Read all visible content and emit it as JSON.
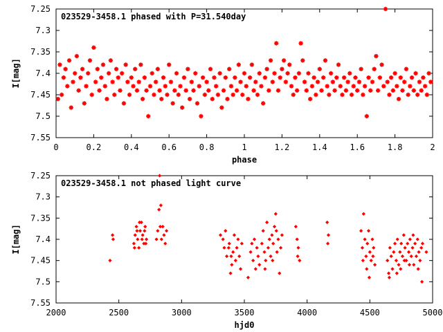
{
  "chart_data": [
    {
      "type": "scatter",
      "title": "023529-3458.1 phased with P=31.540day",
      "xlabel": "phase",
      "ylabel": "I[mag]",
      "xlim": [
        0,
        2
      ],
      "ylim": [
        7.25,
        7.55
      ],
      "y_inverted": true,
      "xticks": [
        "0",
        "0.2",
        "0.4",
        "0.6",
        "0.8",
        "1",
        "1.2",
        "1.4",
        "1.6",
        "1.8",
        "2"
      ],
      "yticks": [
        "7.25",
        "7.3",
        "7.35",
        "7.4",
        "7.45",
        "7.5",
        "7.55"
      ],
      "marker": "star",
      "color": "#ff0000",
      "points": [
        [
          0.01,
          7.46
        ],
        [
          0.02,
          7.38
        ],
        [
          0.03,
          7.45
        ],
        [
          0.04,
          7.41
        ],
        [
          0.05,
          7.39
        ],
        [
          0.06,
          7.43
        ],
        [
          0.07,
          7.37
        ],
        [
          0.08,
          7.48
        ],
        [
          0.09,
          7.42
        ],
        [
          0.1,
          7.4
        ],
        [
          0.11,
          7.36
        ],
        [
          0.12,
          7.44
        ],
        [
          0.13,
          7.41
        ],
        [
          0.14,
          7.39
        ],
        [
          0.15,
          7.47
        ],
        [
          0.16,
          7.43
        ],
        [
          0.17,
          7.4
        ],
        [
          0.18,
          7.37
        ],
        [
          0.19,
          7.45
        ],
        [
          0.2,
          7.34
        ],
        [
          0.21,
          7.42
        ],
        [
          0.22,
          7.39
        ],
        [
          0.23,
          7.44
        ],
        [
          0.24,
          7.41
        ],
        [
          0.25,
          7.38
        ],
        [
          0.26,
          7.43
        ],
        [
          0.27,
          7.46
        ],
        [
          0.28,
          7.4
        ],
        [
          0.29,
          7.37
        ],
        [
          0.3,
          7.42
        ],
        [
          0.31,
          7.45
        ],
        [
          0.32,
          7.39
        ],
        [
          0.33,
          7.41
        ],
        [
          0.34,
          7.44
        ],
        [
          0.35,
          7.4
        ],
        [
          0.36,
          7.47
        ],
        [
          0.37,
          7.38
        ],
        [
          0.38,
          7.42
        ],
        [
          0.39,
          7.45
        ],
        [
          0.4,
          7.41
        ],
        [
          0.41,
          7.43
        ],
        [
          0.42,
          7.39
        ],
        [
          0.43,
          7.44
        ],
        [
          0.44,
          7.42
        ],
        [
          0.45,
          7.38
        ],
        [
          0.46,
          7.46
        ],
        [
          0.47,
          7.41
        ],
        [
          0.48,
          7.44
        ],
        [
          0.49,
          7.5
        ],
        [
          0.5,
          7.43
        ],
        [
          0.51,
          7.4
        ],
        [
          0.52,
          7.45
        ],
        [
          0.53,
          7.42
        ],
        [
          0.54,
          7.39
        ],
        [
          0.55,
          7.44
        ],
        [
          0.56,
          7.46
        ],
        [
          0.57,
          7.41
        ],
        [
          0.58,
          7.43
        ],
        [
          0.59,
          7.45
        ],
        [
          0.6,
          7.38
        ],
        [
          0.61,
          7.42
        ],
        [
          0.62,
          7.47
        ],
        [
          0.63,
          7.44
        ],
        [
          0.64,
          7.4
        ],
        [
          0.65,
          7.45
        ],
        [
          0.66,
          7.43
        ],
        [
          0.67,
          7.48
        ],
        [
          0.68,
          7.41
        ],
        [
          0.69,
          7.44
        ],
        [
          0.7,
          7.39
        ],
        [
          0.71,
          7.46
        ],
        [
          0.72,
          7.42
        ],
        [
          0.73,
          7.44
        ],
        [
          0.74,
          7.4
        ],
        [
          0.75,
          7.47
        ],
        [
          0.76,
          7.43
        ],
        [
          0.77,
          7.5
        ],
        [
          0.78,
          7.41
        ],
        [
          0.79,
          7.45
        ],
        [
          0.8,
          7.42
        ],
        [
          0.81,
          7.44
        ],
        [
          0.82,
          7.39
        ],
        [
          0.83,
          7.46
        ],
        [
          0.84,
          7.41
        ],
        [
          0.85,
          7.43
        ],
        [
          0.86,
          7.45
        ],
        [
          0.87,
          7.4
        ],
        [
          0.88,
          7.48
        ],
        [
          0.89,
          7.44
        ],
        [
          0.9,
          7.41
        ],
        [
          0.91,
          7.46
        ],
        [
          0.92,
          7.39
        ],
        [
          0.93,
          7.43
        ],
        [
          0.94,
          7.45
        ],
        [
          0.95,
          7.41
        ],
        [
          0.96,
          7.44
        ],
        [
          0.97,
          7.38
        ],
        [
          0.98,
          7.42
        ],
        [
          0.99,
          7.45
        ],
        [
          1.0,
          7.4
        ],
        [
          1.01,
          7.43
        ],
        [
          1.02,
          7.46
        ],
        [
          1.03,
          7.41
        ],
        [
          1.04,
          7.38
        ],
        [
          1.05,
          7.44
        ],
        [
          1.06,
          7.42
        ],
        [
          1.07,
          7.45
        ],
        [
          1.08,
          7.4
        ],
        [
          1.09,
          7.43
        ],
        [
          1.1,
          7.47
        ],
        [
          1.11,
          7.41
        ],
        [
          1.12,
          7.39
        ],
        [
          1.13,
          7.44
        ],
        [
          1.14,
          7.37
        ],
        [
          1.15,
          7.42
        ],
        [
          1.16,
          7.4
        ],
        [
          1.17,
          7.33
        ],
        [
          1.18,
          7.44
        ],
        [
          1.19,
          7.41
        ],
        [
          1.2,
          7.39
        ],
        [
          1.21,
          7.37
        ],
        [
          1.22,
          7.42
        ],
        [
          1.23,
          7.4
        ],
        [
          1.24,
          7.38
        ],
        [
          1.25,
          7.43
        ],
        [
          1.26,
          7.45
        ],
        [
          1.27,
          7.41
        ],
        [
          1.28,
          7.44
        ],
        [
          1.29,
          7.4
        ],
        [
          1.3,
          7.33
        ],
        [
          1.31,
          7.37
        ],
        [
          1.32,
          7.42
        ],
        [
          1.33,
          7.44
        ],
        [
          1.34,
          7.4
        ],
        [
          1.35,
          7.46
        ],
        [
          1.36,
          7.43
        ],
        [
          1.37,
          7.41
        ],
        [
          1.38,
          7.45
        ],
        [
          1.39,
          7.42
        ],
        [
          1.4,
          7.39
        ],
        [
          1.41,
          7.44
        ],
        [
          1.42,
          7.41
        ],
        [
          1.43,
          7.37
        ],
        [
          1.44,
          7.43
        ],
        [
          1.45,
          7.45
        ],
        [
          1.46,
          7.4
        ],
        [
          1.47,
          7.42
        ],
        [
          1.48,
          7.44
        ],
        [
          1.49,
          7.41
        ],
        [
          1.5,
          7.38
        ],
        [
          1.51,
          7.43
        ],
        [
          1.52,
          7.45
        ],
        [
          1.53,
          7.41
        ],
        [
          1.54,
          7.44
        ],
        [
          1.55,
          7.42
        ],
        [
          1.56,
          7.4
        ],
        [
          1.57,
          7.45
        ],
        [
          1.58,
          7.43
        ],
        [
          1.59,
          7.41
        ],
        [
          1.6,
          7.44
        ],
        [
          1.61,
          7.42
        ],
        [
          1.62,
          7.39
        ],
        [
          1.63,
          7.45
        ],
        [
          1.64,
          7.43
        ],
        [
          1.65,
          7.5
        ],
        [
          1.66,
          7.41
        ],
        [
          1.67,
          7.44
        ],
        [
          1.68,
          7.42
        ],
        [
          1.69,
          7.39
        ],
        [
          1.7,
          7.36
        ],
        [
          1.71,
          7.44
        ],
        [
          1.72,
          7.41
        ],
        [
          1.73,
          7.38
        ],
        [
          1.74,
          7.43
        ],
        [
          1.75,
          7.25
        ],
        [
          1.76,
          7.42
        ],
        [
          1.77,
          7.45
        ],
        [
          1.78,
          7.41
        ],
        [
          1.79,
          7.44
        ],
        [
          1.8,
          7.4
        ],
        [
          1.81,
          7.43
        ],
        [
          1.82,
          7.46
        ],
        [
          1.83,
          7.41
        ],
        [
          1.84,
          7.44
        ],
        [
          1.85,
          7.42
        ],
        [
          1.86,
          7.39
        ],
        [
          1.87,
          7.45
        ],
        [
          1.88,
          7.43
        ],
        [
          1.89,
          7.41
        ],
        [
          1.9,
          7.44
        ],
        [
          1.91,
          7.4
        ],
        [
          1.92,
          7.45
        ],
        [
          1.93,
          7.42
        ],
        [
          1.94,
          7.44
        ],
        [
          1.95,
          7.41
        ],
        [
          1.96,
          7.43
        ],
        [
          1.97,
          7.45
        ],
        [
          1.98,
          7.4
        ],
        [
          1.99,
          7.42
        ]
      ]
    },
    {
      "type": "scatter",
      "title": "023529-3458.1 not phased light curve",
      "xlabel": "hjd0",
      "ylabel": "I[mag]",
      "xlim": [
        2000,
        5000
      ],
      "ylim": [
        7.25,
        7.55
      ],
      "y_inverted": true,
      "xticks": [
        "2000",
        "2500",
        "3000",
        "3500",
        "4000",
        "4500",
        "5000"
      ],
      "yticks": [
        "7.25",
        "7.3",
        "7.35",
        "7.4",
        "7.45",
        "7.5",
        "7.55"
      ],
      "marker": "diamond",
      "color": "#ff0000",
      "points": [
        [
          2430,
          7.45
        ],
        [
          2450,
          7.39
        ],
        [
          2455,
          7.4
        ],
        [
          2620,
          7.41
        ],
        [
          2630,
          7.39
        ],
        [
          2640,
          7.37
        ],
        [
          2650,
          7.4
        ],
        [
          2660,
          7.42
        ],
        [
          2670,
          7.38
        ],
        [
          2680,
          7.36
        ],
        [
          2690,
          7.39
        ],
        [
          2700,
          7.41
        ],
        [
          2710,
          7.37
        ],
        [
          2720,
          7.4
        ],
        [
          2625,
          7.42
        ],
        [
          2645,
          7.38
        ],
        [
          2665,
          7.36
        ],
        [
          2685,
          7.4
        ],
        [
          2705,
          7.38
        ],
        [
          2715,
          7.41
        ],
        [
          2800,
          7.4
        ],
        [
          2810,
          7.38
        ],
        [
          2820,
          7.33
        ],
        [
          2830,
          7.37
        ],
        [
          2840,
          7.4
        ],
        [
          2850,
          7.37
        ],
        [
          2860,
          7.39
        ],
        [
          2870,
          7.41
        ],
        [
          2880,
          7.38
        ],
        [
          2825,
          7.25
        ],
        [
          2835,
          7.32
        ],
        [
          3310,
          7.39
        ],
        [
          3330,
          7.4
        ],
        [
          3340,
          7.42
        ],
        [
          3350,
          7.38
        ],
        [
          3360,
          7.44
        ],
        [
          3380,
          7.41
        ],
        [
          3400,
          7.46
        ],
        [
          3410,
          7.43
        ],
        [
          3420,
          7.39
        ],
        [
          3430,
          7.45
        ],
        [
          3440,
          7.42
        ],
        [
          3450,
          7.4
        ],
        [
          3460,
          7.44
        ],
        [
          3470,
          7.47
        ],
        [
          3480,
          7.41
        ],
        [
          3390,
          7.48
        ],
        [
          3395,
          7.44
        ],
        [
          3375,
          7.42
        ],
        [
          3530,
          7.49
        ],
        [
          3550,
          7.43
        ],
        [
          3560,
          7.41
        ],
        [
          3570,
          7.45
        ],
        [
          3580,
          7.4
        ],
        [
          3590,
          7.47
        ],
        [
          3600,
          7.42
        ],
        [
          3610,
          7.44
        ],
        [
          3620,
          7.46
        ],
        [
          3640,
          7.41
        ],
        [
          3650,
          7.38
        ],
        [
          3660,
          7.43
        ],
        [
          3670,
          7.45
        ],
        [
          3680,
          7.36
        ],
        [
          3690,
          7.42
        ],
        [
          3700,
          7.4
        ],
        [
          3710,
          7.44
        ],
        [
          3720,
          7.39
        ],
        [
          3730,
          7.41
        ],
        [
          3740,
          7.37
        ],
        [
          3750,
          7.34
        ],
        [
          3760,
          7.43
        ],
        [
          3770,
          7.4
        ],
        [
          3780,
          7.48
        ],
        [
          3790,
          7.42
        ],
        [
          3800,
          7.39
        ],
        [
          3665,
          7.47
        ],
        [
          3725,
          7.45
        ],
        [
          3755,
          7.38
        ],
        [
          3910,
          7.37
        ],
        [
          3920,
          7.4
        ],
        [
          3930,
          7.42
        ],
        [
          3940,
          7.45
        ],
        [
          3925,
          7.44
        ],
        [
          4160,
          7.36
        ],
        [
          4170,
          7.39
        ],
        [
          4165,
          7.41
        ],
        [
          4430,
          7.38
        ],
        [
          4440,
          7.42
        ],
        [
          4450,
          7.34
        ],
        [
          4460,
          7.4
        ],
        [
          4470,
          7.44
        ],
        [
          4480,
          7.41
        ],
        [
          4490,
          7.38
        ],
        [
          4500,
          7.43
        ],
        [
          4510,
          7.45
        ],
        [
          4520,
          7.4
        ],
        [
          4530,
          7.42
        ],
        [
          4540,
          7.46
        ],
        [
          4445,
          7.45
        ],
        [
          4475,
          7.47
        ],
        [
          4495,
          7.49
        ],
        [
          4525,
          7.44
        ],
        [
          4640,
          7.45
        ],
        [
          4650,
          7.48
        ],
        [
          4660,
          7.42
        ],
        [
          4670,
          7.44
        ],
        [
          4680,
          7.47
        ],
        [
          4690,
          7.43
        ],
        [
          4700,
          7.41
        ],
        [
          4710,
          7.45
        ],
        [
          4720,
          7.4
        ],
        [
          4730,
          7.46
        ],
        [
          4740,
          7.43
        ],
        [
          4750,
          7.41
        ],
        [
          4760,
          7.44
        ],
        [
          4770,
          7.39
        ],
        [
          4780,
          7.42
        ],
        [
          4790,
          7.45
        ],
        [
          4800,
          7.41
        ],
        [
          4810,
          7.43
        ],
        [
          4820,
          7.4
        ],
        [
          4830,
          7.44
        ],
        [
          4840,
          7.42
        ],
        [
          4850,
          7.46
        ],
        [
          4860,
          7.41
        ],
        [
          4870,
          7.44
        ],
        [
          4880,
          7.4
        ],
        [
          4890,
          7.43
        ],
        [
          4900,
          7.45
        ],
        [
          4910,
          7.42
        ],
        [
          4920,
          7.41
        ],
        [
          4950,
          7.43
        ],
        [
          4655,
          7.49
        ],
        [
          4715,
          7.48
        ],
        [
          4745,
          7.47
        ],
        [
          4775,
          7.45
        ],
        [
          4815,
          7.46
        ],
        [
          4845,
          7.39
        ],
        [
          4885,
          7.47
        ],
        [
          4915,
          7.5
        ]
      ]
    }
  ]
}
